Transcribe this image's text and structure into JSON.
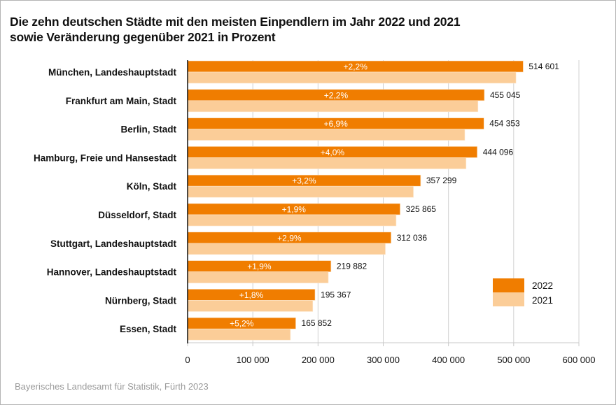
{
  "chart_data": {
    "type": "bar",
    "orientation": "horizontal",
    "title": "Die zehn deutschen Städte mit den meisten Einpendlern im Jahr 2022 und 2021 sowie Veränderung gegenüber 2021 in Prozent",
    "title_lines": [
      "Die zehn deutschen Städte mit den meisten Einpendlern im Jahr 2022 und 2021",
      "sowie Veränderung gegenüber 2021 in Prozent"
    ],
    "categories": [
      "München, Landeshauptstadt",
      "Frankfurt am Main, Stadt",
      "Berlin, Stadt",
      "Hamburg, Freie und Hansestadt",
      "Köln, Stadt",
      "Düsseldorf, Stadt",
      "Stuttgart, Landeshauptstadt",
      "Hannover, Landeshauptstadt",
      "Nürnberg, Stadt",
      "Essen, Stadt"
    ],
    "series": [
      {
        "name": "2022",
        "color": "#f07d00",
        "values": [
          514601,
          455045,
          454353,
          444096,
          357299,
          325865,
          312036,
          219882,
          195367,
          165852
        ],
        "value_labels": [
          "514 601",
          "455 045",
          "454 353",
          "444 096",
          "357 299",
          "325 865",
          "312 036",
          "219 882",
          "195 367",
          "165 852"
        ],
        "change_labels": [
          "+2,2%",
          "+2,2%",
          "+6,9%",
          "+4,0%",
          "+3,2%",
          "+1,9%",
          "+2,9%",
          "+1,9%",
          "+1,8%",
          "+5,2%"
        ]
      },
      {
        "name": "2021",
        "color": "#fbcd98",
        "values": [
          503500,
          445250,
          425030,
          427020,
          346220,
          319790,
          303240,
          215780,
          191910,
          157650
        ]
      }
    ],
    "xlabel": "",
    "ylabel": "",
    "xlim": [
      0,
      600000
    ],
    "xticks": [
      0,
      100000,
      200000,
      300000,
      400000,
      500000,
      600000
    ],
    "xtick_labels": [
      "0",
      "100 000",
      "200 000",
      "300 000",
      "400 000",
      "500 000",
      "600 000"
    ],
    "grid": true,
    "legend": {
      "position": "bottom-right",
      "entries": [
        "2022",
        "2021"
      ]
    }
  },
  "footer": {
    "source": "Bayerisches Landesamt für Statistik, Fürth 2023"
  }
}
